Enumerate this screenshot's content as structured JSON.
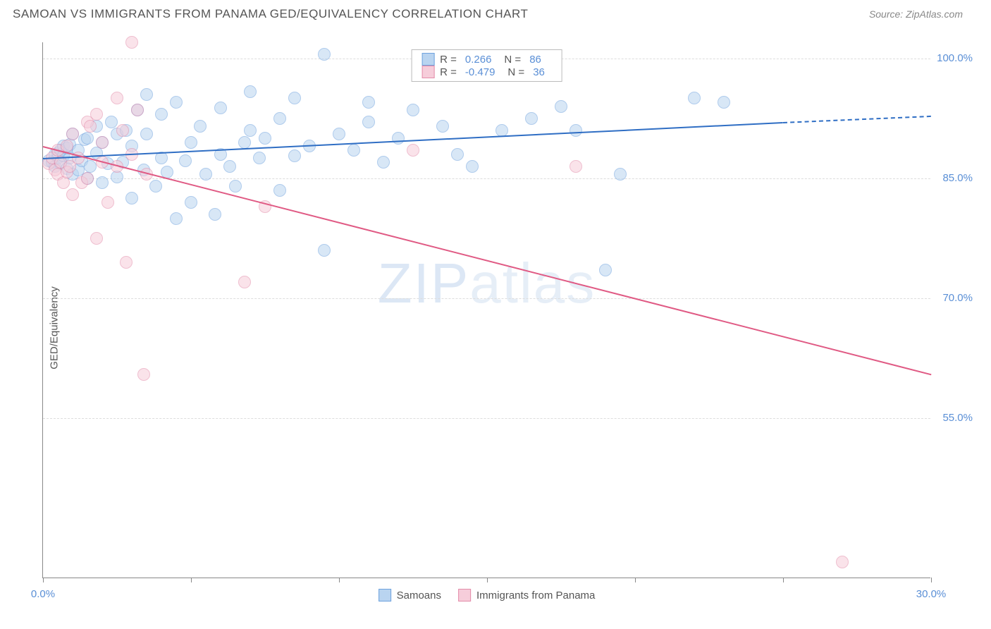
{
  "title": "SAMOAN VS IMMIGRANTS FROM PANAMA GED/EQUIVALENCY CORRELATION CHART",
  "source": "Source: ZipAtlas.com",
  "y_axis_label": "GED/Equivalency",
  "watermark_bold": "ZIP",
  "watermark_light": "atlas",
  "chart": {
    "type": "scatter",
    "x_range": [
      0,
      30
    ],
    "y_range": [
      35,
      102
    ],
    "x_ticks": [
      0,
      5,
      10,
      15,
      20,
      25,
      30
    ],
    "x_tick_labels": {
      "0": "0.0%",
      "30": "30.0%"
    },
    "y_ticks": [
      55,
      70,
      85,
      100
    ],
    "y_tick_labels": [
      "55.0%",
      "70.0%",
      "85.0%",
      "100.0%"
    ],
    "grid_color": "#dddddd",
    "axis_color": "#888888",
    "label_color": "#5a8fd6",
    "background": "#ffffff",
    "point_radius": 9,
    "point_opacity": 0.55,
    "series": [
      {
        "name": "Samoans",
        "fill": "#b9d4f0",
        "stroke": "#6ea2de",
        "trend_color": "#2f6ec4",
        "R": "0.266",
        "N": "86",
        "trend": {
          "x1": 0,
          "y1": 87.5,
          "x2": 25,
          "y2": 92.0,
          "dash_to_x": 30,
          "dash_to_y": 92.8
        },
        "points": [
          [
            0.2,
            87.2
          ],
          [
            0.3,
            87.0
          ],
          [
            0.4,
            88.0
          ],
          [
            0.4,
            86.5
          ],
          [
            0.5,
            87.5
          ],
          [
            0.5,
            88.2
          ],
          [
            0.6,
            86.8
          ],
          [
            0.6,
            88.5
          ],
          [
            0.7,
            87.8
          ],
          [
            0.7,
            89.0
          ],
          [
            0.8,
            86.2
          ],
          [
            0.8,
            88.8
          ],
          [
            0.9,
            87.5
          ],
          [
            0.9,
            89.2
          ],
          [
            1.0,
            85.5
          ],
          [
            1.0,
            90.5
          ],
          [
            1.2,
            86.0
          ],
          [
            1.2,
            88.5
          ],
          [
            1.3,
            87.2
          ],
          [
            1.4,
            89.8
          ],
          [
            1.5,
            85.0
          ],
          [
            1.5,
            90.0
          ],
          [
            1.6,
            86.5
          ],
          [
            1.8,
            88.2
          ],
          [
            1.8,
            91.5
          ],
          [
            2.0,
            84.5
          ],
          [
            2.0,
            89.5
          ],
          [
            2.2,
            86.8
          ],
          [
            2.3,
            92.0
          ],
          [
            2.5,
            85.2
          ],
          [
            2.5,
            90.5
          ],
          [
            2.7,
            87.0
          ],
          [
            2.8,
            91.0
          ],
          [
            3.0,
            82.5
          ],
          [
            3.0,
            89.0
          ],
          [
            3.2,
            93.5
          ],
          [
            3.4,
            86.0
          ],
          [
            3.5,
            90.5
          ],
          [
            3.5,
            95.5
          ],
          [
            3.8,
            84.0
          ],
          [
            4.0,
            87.5
          ],
          [
            4.0,
            93.0
          ],
          [
            4.2,
            85.8
          ],
          [
            4.5,
            80.0
          ],
          [
            4.5,
            94.5
          ],
          [
            4.8,
            87.2
          ],
          [
            5.0,
            82.0
          ],
          [
            5.0,
            89.5
          ],
          [
            5.3,
            91.5
          ],
          [
            5.5,
            85.5
          ],
          [
            5.8,
            80.5
          ],
          [
            6.0,
            88.0
          ],
          [
            6.0,
            93.8
          ],
          [
            6.3,
            86.5
          ],
          [
            6.5,
            84.0
          ],
          [
            6.8,
            89.5
          ],
          [
            7.0,
            91.0
          ],
          [
            7.0,
            95.8
          ],
          [
            7.3,
            87.5
          ],
          [
            7.5,
            90.0
          ],
          [
            8.0,
            83.5
          ],
          [
            8.0,
            92.5
          ],
          [
            8.5,
            87.8
          ],
          [
            8.5,
            95.0
          ],
          [
            9.0,
            89.0
          ],
          [
            9.5,
            76.0
          ],
          [
            9.5,
            100.5
          ],
          [
            10.0,
            90.5
          ],
          [
            10.5,
            88.5
          ],
          [
            11.0,
            92.0
          ],
          [
            11.0,
            94.5
          ],
          [
            11.5,
            87.0
          ],
          [
            12.0,
            90.0
          ],
          [
            12.5,
            93.5
          ],
          [
            13.0,
            98.0
          ],
          [
            13.5,
            91.5
          ],
          [
            14.0,
            88.0
          ],
          [
            14.5,
            86.5
          ],
          [
            15.5,
            91.0
          ],
          [
            16.5,
            92.5
          ],
          [
            17.5,
            94.0
          ],
          [
            18.0,
            91.0
          ],
          [
            19.0,
            73.5
          ],
          [
            19.5,
            85.5
          ],
          [
            22.0,
            95.0
          ],
          [
            23.0,
            94.5
          ]
        ]
      },
      {
        "name": "Immigrants from Panama",
        "fill": "#f6cdda",
        "stroke": "#e38ba9",
        "trend_color": "#e05a84",
        "R": "-0.479",
        "N": "36",
        "trend": {
          "x1": 0,
          "y1": 89.0,
          "x2": 30,
          "y2": 60.5
        },
        "points": [
          [
            0.2,
            86.8
          ],
          [
            0.3,
            87.5
          ],
          [
            0.4,
            86.0
          ],
          [
            0.5,
            88.5
          ],
          [
            0.5,
            85.5
          ],
          [
            0.6,
            87.0
          ],
          [
            0.7,
            84.5
          ],
          [
            0.8,
            89.0
          ],
          [
            0.8,
            85.8
          ],
          [
            0.9,
            86.5
          ],
          [
            1.0,
            83.0
          ],
          [
            1.0,
            90.5
          ],
          [
            1.2,
            87.5
          ],
          [
            1.3,
            84.5
          ],
          [
            1.5,
            92.0
          ],
          [
            1.5,
            85.0
          ],
          [
            1.6,
            91.5
          ],
          [
            1.8,
            93.0
          ],
          [
            1.8,
            77.5
          ],
          [
            2.0,
            87.0
          ],
          [
            2.0,
            89.5
          ],
          [
            2.2,
            82.0
          ],
          [
            2.5,
            95.0
          ],
          [
            2.5,
            86.5
          ],
          [
            2.7,
            91.0
          ],
          [
            2.8,
            74.5
          ],
          [
            3.0,
            88.0
          ],
          [
            3.0,
            102.0
          ],
          [
            3.2,
            93.5
          ],
          [
            3.4,
            60.5
          ],
          [
            3.5,
            85.5
          ],
          [
            6.8,
            72.0
          ],
          [
            7.5,
            81.5
          ],
          [
            12.5,
            88.5
          ],
          [
            18.0,
            86.5
          ],
          [
            27.0,
            37.0
          ]
        ]
      }
    ]
  },
  "stat_legend_labels": {
    "R": "R =",
    "N": "N ="
  },
  "bottom_legend": [
    "Samoans",
    "Immigrants from Panama"
  ]
}
